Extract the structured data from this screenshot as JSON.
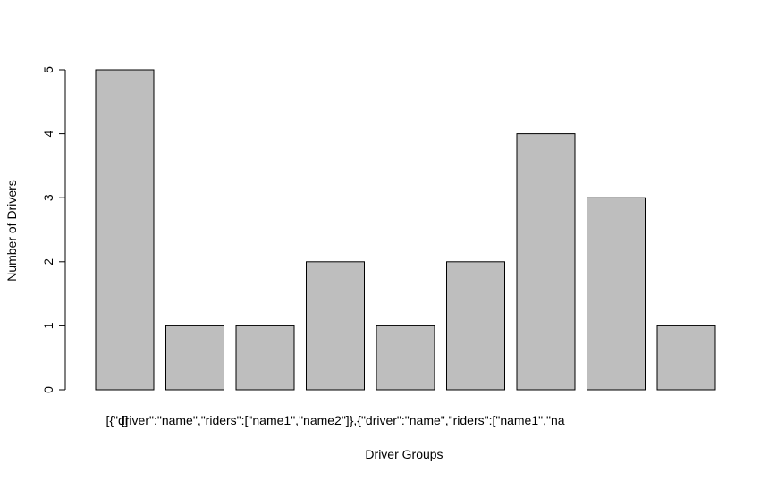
{
  "chart_data": {
    "type": "bar",
    "categories": [
      "[]",
      "",
      "",
      "[{\"driver\":\"name\",\"riders\":[\"name1\",\"name2\"]},{\"driver\":\"name\",\"riders\":[\"name1\",\"na",
      "",
      "",
      "",
      "",
      ""
    ],
    "values": [
      5,
      1,
      1,
      2,
      1,
      2,
      4,
      3,
      1
    ],
    "xlabel": "Driver Groups",
    "ylabel": "Number of Drivers",
    "ylim": [
      0,
      5
    ],
    "yticks": [
      0,
      1,
      2,
      3,
      4,
      5
    ],
    "grid": false,
    "colors": {
      "bar_fill": "#bebebe",
      "bar_stroke": "#000000"
    }
  }
}
